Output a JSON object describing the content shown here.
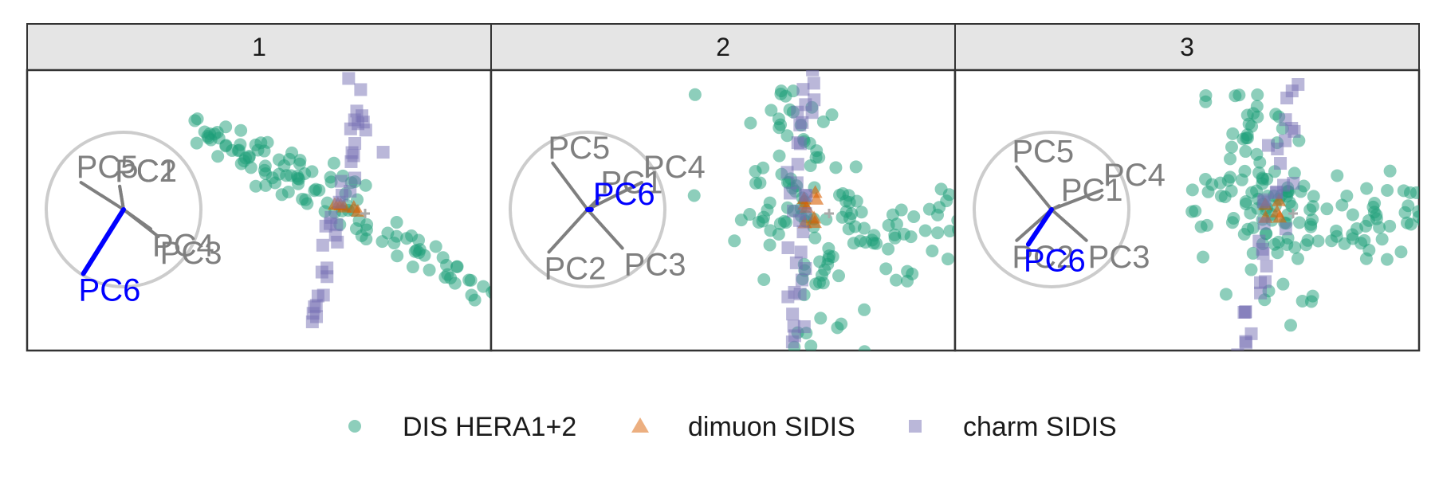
{
  "colors": {
    "dis": "#1b9e77",
    "dimuon": "#d95f02",
    "charm": "#7570b3",
    "loading": "#7f7f7f",
    "highlight": "#0000ff",
    "circle": "#cccccc",
    "strip_fill": "#e5e5e5",
    "border": "#333333"
  },
  "legend": {
    "items": [
      {
        "key": "dis",
        "label": "DIS HERA1+2",
        "shape": "circle"
      },
      {
        "key": "dimuon",
        "label": "dimuon SIDIS",
        "shape": "triangle"
      },
      {
        "key": "charm",
        "label": "charm SIDIS",
        "shape": "square"
      }
    ]
  },
  "chart_data": {
    "type": "scatter",
    "subtype": "PCA biplot, faceted",
    "facets": [
      {
        "strip": "1",
        "center": [
          0,
          0
        ],
        "loadings": [
          {
            "label": "PC1",
            "x": -0.05,
            "y": 0.3,
            "highlight": false
          },
          {
            "label": "PC2",
            "x": -0.05,
            "y": 0.3,
            "highlight": false
          },
          {
            "label": "PC3",
            "x": 0.45,
            "y": -0.35,
            "highlight": false
          },
          {
            "label": "PC4",
            "x": 0.35,
            "y": -0.25,
            "highlight": false
          },
          {
            "label": "PC5",
            "x": -0.55,
            "y": 0.35,
            "highlight": false
          },
          {
            "label": "PC6",
            "x": -0.52,
            "y": -0.83,
            "highlight": true
          }
        ],
        "series": [
          {
            "key": "dis",
            "name": "DIS HERA1+2",
            "shape": "circle",
            "arms": [
              {
                "from": [
                  -1.35,
                  0.75
                ],
                "to": [
                  1.45,
                  -0.85
                ],
                "n": 90,
                "spread": 0.08
              },
              {
                "from": [
                  -1.2,
                  0.65
                ],
                "to": [
                  0.1,
                  0.25
                ],
                "n": 30,
                "spread": 0.09
              }
            ]
          },
          {
            "key": "dimuon",
            "name": "dimuon SIDIS",
            "shape": "triangle",
            "arms": [
              {
                "from": [
                  -0.08,
                  0.05
                ],
                "to": [
                  0.12,
                  0.0
                ],
                "n": 6,
                "spread": 0.02
              }
            ]
          },
          {
            "key": "charm",
            "name": "charm SIDIS",
            "shape": "square",
            "arms": [
              {
                "from": [
                  -0.35,
                  -1.1
                ],
                "to": [
                  0.2,
                  0.9
                ],
                "n": 30,
                "spread": 0.07
              },
              {
                "from": [
                  0.1,
                  1.2
                ],
                "to": [
                  0.35,
                  0.6
                ],
                "n": 6,
                "spread": 0.05
              }
            ]
          }
        ]
      },
      {
        "strip": "2",
        "center": [
          0,
          0
        ],
        "loadings": [
          {
            "label": "PC1",
            "x": 0.15,
            "y": 0.15,
            "highlight": false
          },
          {
            "label": "PC2",
            "x": -0.5,
            "y": -0.55,
            "highlight": false
          },
          {
            "label": "PC3",
            "x": 0.45,
            "y": -0.5,
            "highlight": false
          },
          {
            "label": "PC4",
            "x": 0.7,
            "y": 0.35,
            "highlight": false
          },
          {
            "label": "PC5",
            "x": -0.45,
            "y": 0.6,
            "highlight": false
          },
          {
            "label": "PC6",
            "x": 0.05,
            "y": 0.0,
            "highlight": true
          }
        ],
        "series": [
          {
            "key": "dis",
            "name": "DIS HERA1+2",
            "shape": "circle",
            "arms": [
              {
                "from": [
                  -0.25,
                  1.15
                ],
                "to": [
                  0.25,
                  -1.1
                ],
                "n": 80,
                "spread": 0.25
              },
              {
                "from": [
                  -0.6,
                  0.1
                ],
                "to": [
                  1.6,
                  -0.3
                ],
                "n": 60,
                "spread": 0.18
              },
              {
                "from": [
                  0.8,
                  -0.25
                ],
                "to": [
                  1.7,
                  -0.05
                ],
                "n": 12,
                "spread": 0.12
              }
            ]
          },
          {
            "key": "dimuon",
            "name": "dimuon SIDIS",
            "shape": "triangle",
            "arms": [
              {
                "from": [
                  0.0,
                  0.2
                ],
                "to": [
                  0.05,
                  -0.15
                ],
                "n": 8,
                "spread": 0.04
              }
            ]
          },
          {
            "key": "charm",
            "name": "charm SIDIS",
            "shape": "square",
            "arms": [
              {
                "from": [
                  -0.05,
                  1.0
                ],
                "to": [
                  -0.1,
                  -1.25
                ],
                "n": 30,
                "spread": 0.06
              },
              {
                "from": [
                  0.05,
                  1.3
                ],
                "to": [
                  0.05,
                  0.9
                ],
                "n": 4,
                "spread": 0.02
              }
            ]
          }
        ]
      },
      {
        "strip": "3",
        "center": [
          0,
          0
        ],
        "loadings": [
          {
            "label": "PC1",
            "x": 0.1,
            "y": 0.05,
            "highlight": false
          },
          {
            "label": "PC2",
            "x": -0.45,
            "y": -0.4,
            "highlight": false
          },
          {
            "label": "PC3",
            "x": 0.45,
            "y": -0.4,
            "highlight": false
          },
          {
            "label": "PC4",
            "x": 0.65,
            "y": 0.25,
            "highlight": false
          },
          {
            "label": "PC5",
            "x": -0.45,
            "y": 0.55,
            "highlight": false
          },
          {
            "label": "PC6",
            "x": -0.3,
            "y": -0.45,
            "highlight": true
          }
        ],
        "series": [
          {
            "key": "dis",
            "name": "DIS HERA1+2",
            "shape": "circle",
            "arms": [
              {
                "from": [
                  -0.2,
                  1.1
                ],
                "to": [
                  0.15,
                  -0.8
                ],
                "n": 70,
                "spread": 0.2
              },
              {
                "from": [
                  -0.7,
                  0.05
                ],
                "to": [
                  1.4,
                  -0.1
                ],
                "n": 80,
                "spread": 0.18
              },
              {
                "from": [
                  0.9,
                  -0.1
                ],
                "to": [
                  1.65,
                  -0.05
                ],
                "n": 12,
                "spread": 0.1
              }
            ]
          },
          {
            "key": "dimuon",
            "name": "dimuon SIDIS",
            "shape": "triangle",
            "arms": [
              {
                "from": [
                  -0.05,
                  0.0
                ],
                "to": [
                  0.1,
                  0.05
                ],
                "n": 5,
                "spread": 0.03
              }
            ]
          },
          {
            "key": "charm",
            "name": "charm SIDIS",
            "shape": "square",
            "arms": [
              {
                "from": [
                  0.2,
                  1.0
                ],
                "to": [
                  -0.35,
                  -1.7
                ],
                "n": 34,
                "spread": 0.06
              },
              {
                "from": [
                  0.3,
                  1.75
                ],
                "to": [
                  0.22,
                  1.1
                ],
                "n": 6,
                "spread": 0.03
              }
            ]
          }
        ]
      }
    ]
  }
}
